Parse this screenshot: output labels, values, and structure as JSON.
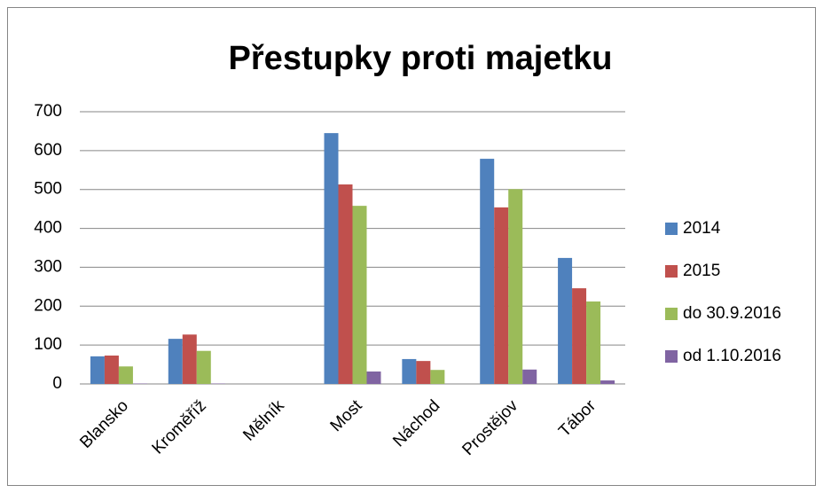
{
  "chart_data": {
    "type": "bar",
    "title": "Přestupky proti majetku",
    "categories": [
      "Blansko",
      "Kroměříž",
      "Mělník",
      "Most",
      "Náchod",
      "Prostějov",
      "Tábor"
    ],
    "series": [
      {
        "name": "2014",
        "color": "#4f81bd",
        "values": [
          71,
          116,
          0,
          645,
          64,
          579,
          324
        ]
      },
      {
        "name": "2015",
        "color": "#c0504d",
        "values": [
          73,
          127,
          0,
          513,
          59,
          454,
          246
        ]
      },
      {
        "name": "do 30.9.2016",
        "color": "#9bbb59",
        "values": [
          45,
          85,
          0,
          458,
          36,
          501,
          212
        ]
      },
      {
        "name": "od 1.10.2016",
        "color": "#8064a2",
        "values": [
          1,
          1,
          0,
          32,
          0,
          37,
          9
        ]
      }
    ],
    "ylim": [
      0,
      700
    ],
    "yticks": [
      0,
      100,
      200,
      300,
      400,
      500,
      600,
      700
    ],
    "grid": true,
    "legend": "right"
  }
}
